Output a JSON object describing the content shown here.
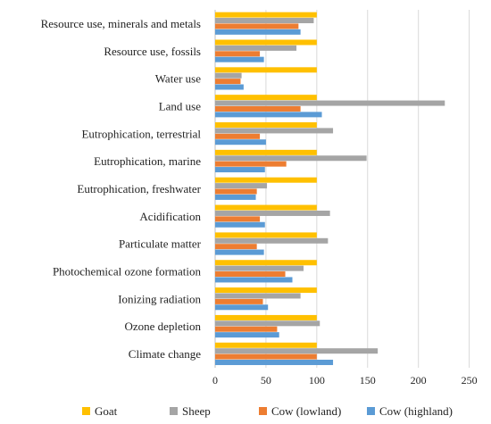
{
  "chart_data": {
    "type": "bar",
    "orientation": "horizontal",
    "categories": [
      "Resource use, minerals and metals",
      "Resource use, fossils",
      "Water use",
      "Land use",
      "Eutrophication, terrestrial",
      "Eutrophication, marine",
      "Eutrophication, freshwater",
      "Acidification",
      "Particulate matter",
      "Photochemical ozone formation",
      "Ionizing radiation",
      "Ozone depletion",
      "Climate change"
    ],
    "series": [
      {
        "name": "Goat",
        "color": "#FFC000",
        "values": [
          100,
          100,
          100,
          100,
          100,
          100,
          100,
          100,
          100,
          100,
          100,
          100,
          100
        ]
      },
      {
        "name": "Sheep",
        "color": "#A5A5A5",
        "values": [
          97,
          80,
          26,
          226,
          116,
          149,
          51,
          113,
          111,
          87,
          84,
          103,
          160
        ]
      },
      {
        "name": "Cow (lowland)",
        "color": "#ED7D31",
        "values": [
          82,
          44,
          25,
          84,
          44,
          70,
          41,
          44,
          41,
          69,
          47,
          61,
          100
        ]
      },
      {
        "name": "Cow (highland)",
        "color": "#5B9BD5",
        "values": [
          84,
          48,
          28,
          105,
          50,
          49,
          40,
          49,
          48,
          76,
          52,
          63,
          116
        ]
      }
    ],
    "xlim": [
      0,
      250
    ],
    "xticks": [
      0,
      50,
      100,
      150,
      200,
      250
    ],
    "grid": true,
    "legend_position": "bottom",
    "title": "",
    "xlabel": "",
    "ylabel": ""
  }
}
